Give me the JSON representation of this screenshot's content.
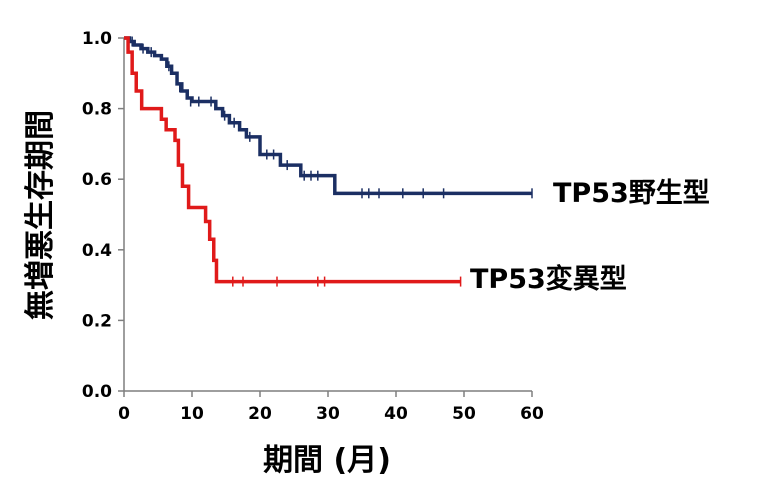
{
  "chart_data": {
    "type": "line",
    "title": "",
    "xlabel": "期間 (月)",
    "ylabel": "無増悪生存期間",
    "xlim": [
      0,
      60
    ],
    "ylim": [
      0,
      1.0
    ],
    "x_ticks": [
      "0",
      "10",
      "20",
      "30",
      "40",
      "50",
      "60"
    ],
    "y_ticks": [
      "0.0",
      "0.2",
      "0.4",
      "0.6",
      "0.8",
      "1.0"
    ],
    "grid": false,
    "legend": "none",
    "series": [
      {
        "name": "TP53野生型",
        "color": "#1b2f63",
        "steps": [
          [
            0,
            1.0
          ],
          [
            0.8,
            0.99
          ],
          [
            1.5,
            0.98
          ],
          [
            2.5,
            0.97
          ],
          [
            3.5,
            0.96
          ],
          [
            4.5,
            0.95
          ],
          [
            5.5,
            0.94
          ],
          [
            6.3,
            0.92
          ],
          [
            7,
            0.9
          ],
          [
            7.8,
            0.87
          ],
          [
            8.5,
            0.85
          ],
          [
            9.3,
            0.83
          ],
          [
            10,
            0.82
          ],
          [
            12,
            0.82
          ],
          [
            13.5,
            0.8
          ],
          [
            14.5,
            0.78
          ],
          [
            15.5,
            0.76
          ],
          [
            17,
            0.74
          ],
          [
            18,
            0.72
          ],
          [
            20,
            0.67
          ],
          [
            23,
            0.64
          ],
          [
            26,
            0.61
          ],
          [
            29.5,
            0.61
          ],
          [
            31,
            0.56
          ],
          [
            60,
            0.56
          ]
        ],
        "censored": [
          [
            1.2,
            0.99
          ],
          [
            2.8,
            0.97
          ],
          [
            4,
            0.96
          ],
          [
            6.6,
            0.92
          ],
          [
            8.2,
            0.86
          ],
          [
            9.8,
            0.82
          ],
          [
            11,
            0.82
          ],
          [
            12.8,
            0.82
          ],
          [
            14.8,
            0.78
          ],
          [
            16.2,
            0.76
          ],
          [
            18.5,
            0.72
          ],
          [
            21,
            0.67
          ],
          [
            22,
            0.67
          ],
          [
            24,
            0.64
          ],
          [
            26.5,
            0.61
          ],
          [
            27.5,
            0.61
          ],
          [
            28.5,
            0.61
          ],
          [
            35,
            0.56
          ],
          [
            36,
            0.56
          ],
          [
            37.5,
            0.56
          ],
          [
            41,
            0.56
          ],
          [
            44,
            0.56
          ],
          [
            47,
            0.56
          ],
          [
            60,
            0.56
          ]
        ]
      },
      {
        "name": "TP53変異型",
        "color": "#e01a1a",
        "steps": [
          [
            0,
            1.0
          ],
          [
            0.6,
            0.96
          ],
          [
            1.2,
            0.9
          ],
          [
            1.8,
            0.85
          ],
          [
            2.6,
            0.8
          ],
          [
            5.5,
            0.77
          ],
          [
            6.2,
            0.74
          ],
          [
            7.5,
            0.71
          ],
          [
            8,
            0.64
          ],
          [
            8.6,
            0.58
          ],
          [
            9.5,
            0.52
          ],
          [
            12,
            0.48
          ],
          [
            12.6,
            0.43
          ],
          [
            13.2,
            0.37
          ],
          [
            13.6,
            0.31
          ],
          [
            49.5,
            0.31
          ]
        ],
        "censored": [
          [
            16,
            0.31
          ],
          [
            17.5,
            0.31
          ],
          [
            22.5,
            0.31
          ],
          [
            28.5,
            0.31
          ],
          [
            29.5,
            0.31
          ],
          [
            49.5,
            0.31
          ]
        ]
      }
    ]
  }
}
